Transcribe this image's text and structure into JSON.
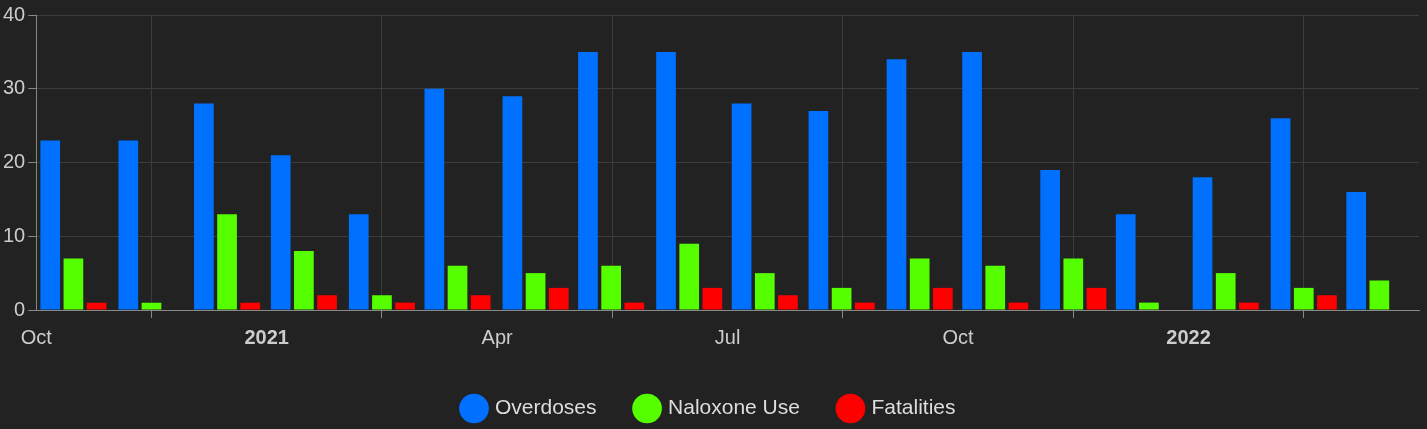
{
  "chart_data": {
    "type": "bar",
    "x": [
      "2020-10-16",
      "2020-11-16",
      "2020-12-16",
      "2021-01-16",
      "2021-02-15",
      "2021-03-16",
      "2021-04-16",
      "2021-05-16",
      "2021-06-16",
      "2021-07-16",
      "2021-08-16",
      "2021-09-16",
      "2021-10-16",
      "2021-11-16",
      "2021-12-16",
      "2022-01-16",
      "2022-02-15",
      "2022-03-16"
    ],
    "series": [
      {
        "name": "Overdoses",
        "color": "#0070ff",
        "values": [
          23,
          23,
          28,
          21,
          13,
          30,
          29,
          35,
          35,
          28,
          27,
          34,
          35,
          19,
          13,
          18,
          26,
          16
        ]
      },
      {
        "name": "Naloxone Use",
        "color": "#55ff00",
        "values": [
          7,
          1,
          13,
          8,
          2,
          6,
          5,
          6,
          9,
          5,
          3,
          7,
          6,
          7,
          1,
          5,
          3,
          4
        ]
      },
      {
        "name": "Fatalities",
        "color": "#ff0000",
        "values": [
          1,
          0,
          1,
          2,
          1,
          2,
          3,
          1,
          3,
          2,
          1,
          3,
          1,
          3,
          0,
          1,
          2,
          0
        ]
      }
    ],
    "xlim": [
      "2020-10",
      "2022-04"
    ],
    "xticks": [
      {
        "value": "2020-10",
        "label": "Oct"
      },
      {
        "value": "2021-01",
        "label": "2021"
      },
      {
        "value": "2021-04",
        "label": "Apr"
      },
      {
        "value": "2021-07",
        "label": "Jul"
      },
      {
        "value": "2021-10",
        "label": "Oct"
      },
      {
        "value": "2022-01",
        "label": "2022"
      }
    ],
    "ylim": [
      0,
      40
    ],
    "yticks": [
      0,
      10,
      20,
      30,
      40
    ],
    "grid": true,
    "legend": "bottom"
  }
}
